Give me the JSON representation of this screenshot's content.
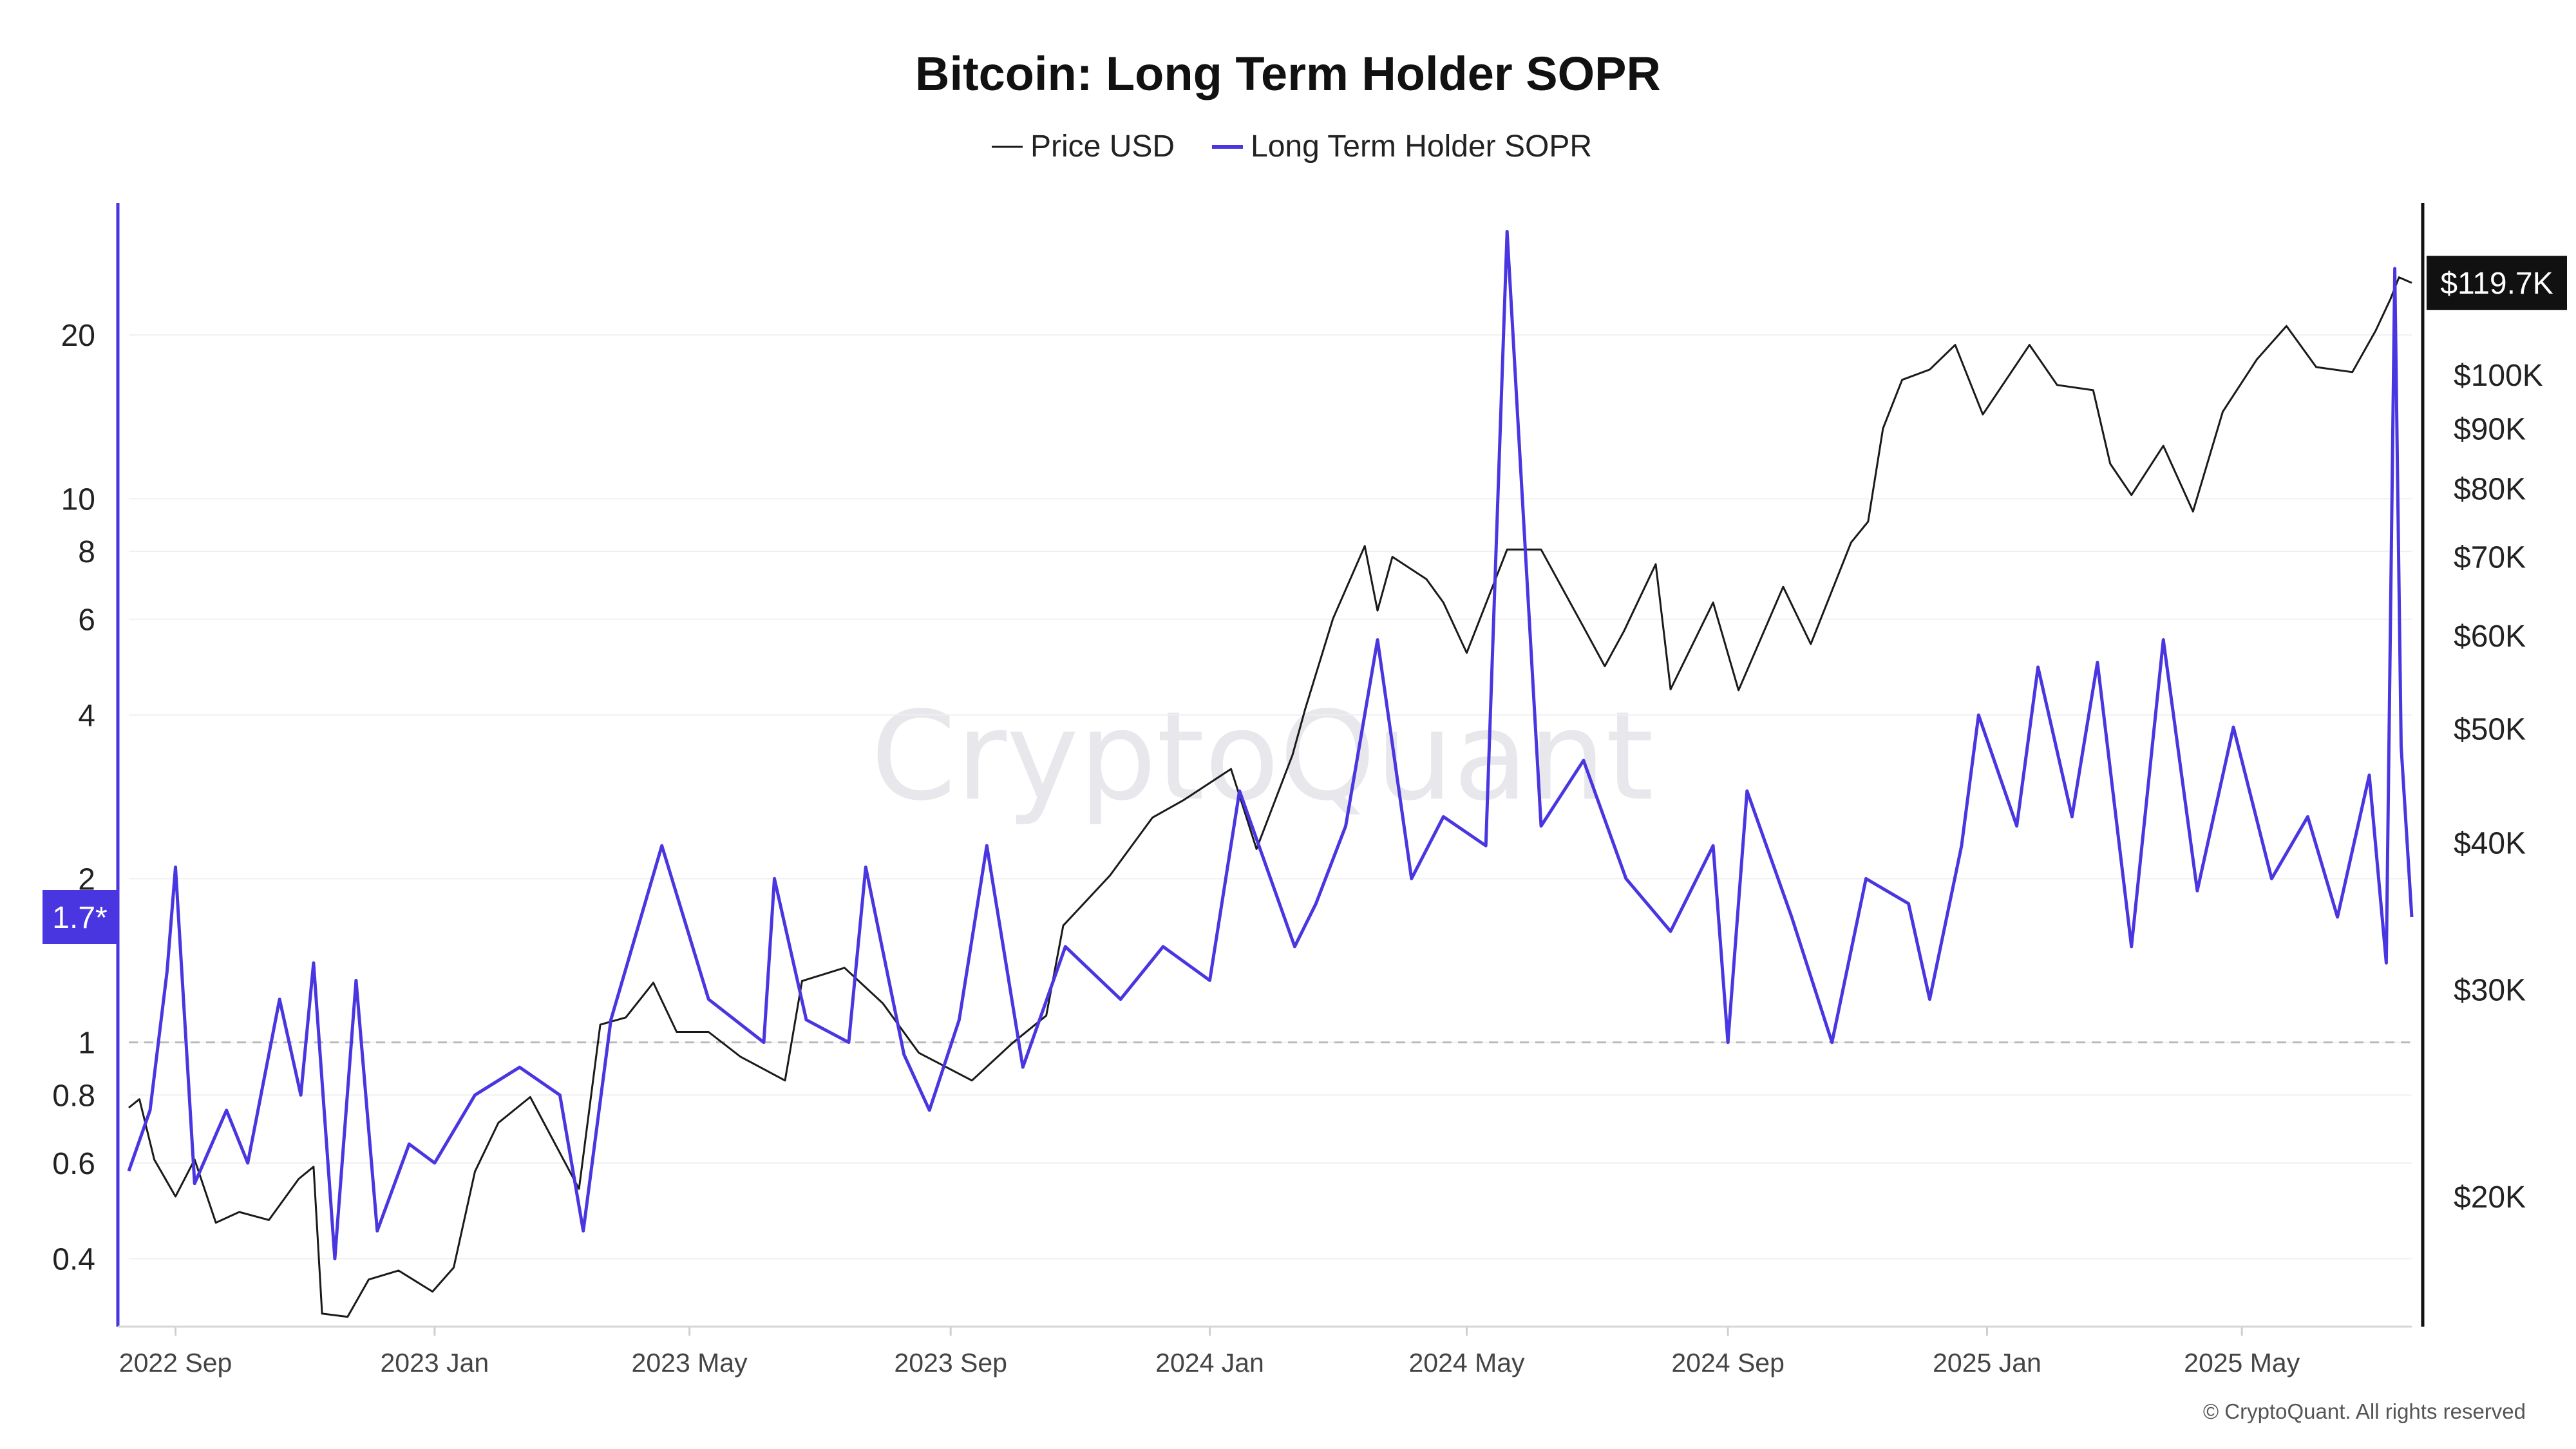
{
  "chart_data": {
    "type": "line",
    "title": "Bitcoin: Long Term Holder SOPR",
    "legend": {
      "placement": "top-center",
      "items": [
        "Price USD",
        "Long Term Holder SOPR"
      ]
    },
    "colors": {
      "price": "#1a1a1a",
      "sopr": "#4a36e0",
      "reference_line": "#bbbbbb",
      "last_price_badge": "#111111",
      "last_sopr_badge": "#4a36e0"
    },
    "grid": true,
    "x": {
      "range": [
        "2022-08-10",
        "2025-07-20"
      ],
      "ticks": [
        "2022 Sep",
        "2023 Jan",
        "2023 May",
        "2023 Sep",
        "2024 Jan",
        "2024 May",
        "2024 Sep",
        "2025 Jan",
        "2025 May"
      ],
      "tick_dates": [
        "2022-09-01",
        "2023-01-01",
        "2023-05-01",
        "2023-09-01",
        "2024-01-01",
        "2024-05-01",
        "2024-09-01",
        "2025-01-01",
        "2025-05-01"
      ]
    },
    "y_left": {
      "series": "Long Term Holder SOPR",
      "scale": "log",
      "range": [
        0.3,
        35
      ],
      "ticks": [
        0.4,
        0.6,
        0.8,
        1,
        2,
        4,
        6,
        8,
        10,
        20
      ],
      "tick_labels": [
        "0.4",
        "0.6",
        "0.8",
        "1",
        "2",
        "4",
        "6",
        "8",
        "10",
        "20"
      ],
      "reference_line": 1
    },
    "y_right": {
      "series": "Price USD",
      "scale": "log",
      "range": [
        15500,
        140000
      ],
      "ticks": [
        20000,
        30000,
        40000,
        50000,
        60000,
        70000,
        80000,
        90000,
        100000
      ],
      "tick_labels": [
        "$20K",
        "$30K",
        "$40K",
        "$50K",
        "$60K",
        "$70K",
        "$80K",
        "$90K",
        "$100K"
      ]
    },
    "series": [
      {
        "name": "Price USD",
        "axis": "right",
        "points": [
          [
            "2022-08-10",
            23800
          ],
          [
            "2022-08-15",
            24200
          ],
          [
            "2022-08-22",
            21500
          ],
          [
            "2022-09-01",
            20000
          ],
          [
            "2022-09-10",
            21500
          ],
          [
            "2022-09-20",
            19000
          ],
          [
            "2022-10-01",
            19400
          ],
          [
            "2022-10-15",
            19100
          ],
          [
            "2022-10-29",
            20700
          ],
          [
            "2022-11-05",
            21200
          ],
          [
            "2022-11-09",
            15900
          ],
          [
            "2022-11-21",
            15800
          ],
          [
            "2022-12-01",
            17000
          ],
          [
            "2022-12-15",
            17300
          ],
          [
            "2022-12-31",
            16600
          ],
          [
            "2023-01-10",
            17400
          ],
          [
            "2023-01-20",
            21000
          ],
          [
            "2023-01-31",
            23100
          ],
          [
            "2023-02-15",
            24300
          ],
          [
            "2023-03-10",
            20300
          ],
          [
            "2023-03-20",
            28000
          ],
          [
            "2023-04-01",
            28400
          ],
          [
            "2023-04-14",
            30400
          ],
          [
            "2023-04-25",
            27600
          ],
          [
            "2023-05-10",
            27600
          ],
          [
            "2023-05-25",
            26300
          ],
          [
            "2023-06-15",
            25100
          ],
          [
            "2023-06-23",
            30500
          ],
          [
            "2023-07-13",
            31300
          ],
          [
            "2023-07-31",
            29200
          ],
          [
            "2023-08-17",
            26500
          ],
          [
            "2023-09-11",
            25100
          ],
          [
            "2023-09-30",
            27000
          ],
          [
            "2023-10-16",
            28500
          ],
          [
            "2023-10-24",
            34000
          ],
          [
            "2023-11-15",
            37500
          ],
          [
            "2023-12-05",
            42000
          ],
          [
            "2023-12-20",
            43500
          ],
          [
            "2024-01-11",
            46200
          ],
          [
            "2024-01-23",
            39500
          ],
          [
            "2024-02-09",
            47500
          ],
          [
            "2024-02-15",
            52000
          ],
          [
            "2024-02-28",
            62000
          ],
          [
            "2024-03-14",
            71500
          ],
          [
            "2024-03-20",
            63000
          ],
          [
            "2024-03-27",
            70000
          ],
          [
            "2024-04-12",
            67000
          ],
          [
            "2024-04-20",
            64000
          ],
          [
            "2024-05-01",
            58000
          ],
          [
            "2024-05-20",
            71000
          ],
          [
            "2024-06-05",
            71000
          ],
          [
            "2024-06-25",
            61000
          ],
          [
            "2024-07-05",
            56500
          ],
          [
            "2024-07-14",
            60500
          ],
          [
            "2024-07-29",
            69000
          ],
          [
            "2024-08-05",
            54000
          ],
          [
            "2024-08-25",
            64000
          ],
          [
            "2024-09-06",
            53900
          ],
          [
            "2024-09-27",
            66000
          ],
          [
            "2024-10-10",
            59000
          ],
          [
            "2024-10-29",
            72000
          ],
          [
            "2024-11-06",
            75000
          ],
          [
            "2024-11-13",
            90000
          ],
          [
            "2024-11-22",
            99000
          ],
          [
            "2024-12-05",
            101000
          ],
          [
            "2024-12-17",
            106000
          ],
          [
            "2024-12-30",
            92500
          ],
          [
            "2025-01-21",
            106000
          ],
          [
            "2025-02-03",
            98000
          ],
          [
            "2025-02-20",
            97000
          ],
          [
            "2025-02-28",
            84000
          ],
          [
            "2025-03-10",
            79000
          ],
          [
            "2025-03-25",
            87000
          ],
          [
            "2025-04-08",
            76500
          ],
          [
            "2025-04-22",
            93000
          ],
          [
            "2025-05-08",
            103000
          ],
          [
            "2025-05-22",
            110000
          ],
          [
            "2025-06-05",
            101500
          ],
          [
            "2025-06-22",
            100500
          ],
          [
            "2025-07-03",
            109000
          ],
          [
            "2025-07-10",
            116000
          ],
          [
            "2025-07-14",
            121000
          ],
          [
            "2025-07-20",
            119700
          ]
        ],
        "last_value_label": "$119.7K"
      },
      {
        "name": "Long Term Holder SOPR",
        "axis": "left",
        "points": [
          [
            "2022-08-10",
            0.58
          ],
          [
            "2022-08-20",
            0.75
          ],
          [
            "2022-08-28",
            1.35
          ],
          [
            "2022-09-01",
            2.1
          ],
          [
            "2022-09-10",
            0.55
          ],
          [
            "2022-09-25",
            0.75
          ],
          [
            "2022-10-05",
            0.6
          ],
          [
            "2022-10-20",
            1.2
          ],
          [
            "2022-10-30",
            0.8
          ],
          [
            "2022-11-05",
            1.4
          ],
          [
            "2022-11-15",
            0.4
          ],
          [
            "2022-11-25",
            1.3
          ],
          [
            "2022-12-05",
            0.45
          ],
          [
            "2022-12-20",
            0.65
          ],
          [
            "2023-01-01",
            0.6
          ],
          [
            "2023-01-20",
            0.8
          ],
          [
            "2023-02-10",
            0.9
          ],
          [
            "2023-03-01",
            0.8
          ],
          [
            "2023-03-12",
            0.45
          ],
          [
            "2023-03-25",
            1.1
          ],
          [
            "2023-04-18",
            2.3
          ],
          [
            "2023-05-10",
            1.2
          ],
          [
            "2023-06-05",
            1.0
          ],
          [
            "2023-06-10",
            2.0
          ],
          [
            "2023-06-25",
            1.1
          ],
          [
            "2023-07-15",
            1.0
          ],
          [
            "2023-07-23",
            2.1
          ],
          [
            "2023-08-10",
            0.95
          ],
          [
            "2023-08-22",
            0.75
          ],
          [
            "2023-09-05",
            1.1
          ],
          [
            "2023-09-18",
            2.3
          ],
          [
            "2023-10-05",
            0.9
          ],
          [
            "2023-10-25",
            1.5
          ],
          [
            "2023-11-20",
            1.2
          ],
          [
            "2023-12-10",
            1.5
          ],
          [
            "2024-01-01",
            1.3
          ],
          [
            "2024-01-15",
            2.9
          ],
          [
            "2024-02-10",
            1.5
          ],
          [
            "2024-02-20",
            1.8
          ],
          [
            "2024-03-05",
            2.5
          ],
          [
            "2024-03-20",
            5.5
          ],
          [
            "2024-04-05",
            2.0
          ],
          [
            "2024-04-20",
            2.6
          ],
          [
            "2024-05-10",
            2.3
          ],
          [
            "2024-05-20",
            31.0
          ],
          [
            "2024-06-05",
            2.5
          ],
          [
            "2024-06-25",
            3.3
          ],
          [
            "2024-07-15",
            2.0
          ],
          [
            "2024-08-05",
            1.6
          ],
          [
            "2024-08-25",
            2.3
          ],
          [
            "2024-09-01",
            1.0
          ],
          [
            "2024-09-10",
            2.9
          ],
          [
            "2024-10-01",
            1.7
          ],
          [
            "2024-10-20",
            1.0
          ],
          [
            "2024-11-05",
            2.0
          ],
          [
            "2024-11-25",
            1.8
          ],
          [
            "2024-12-05",
            1.2
          ],
          [
            "2024-12-20",
            2.3
          ],
          [
            "2024-12-28",
            4.0
          ],
          [
            "2025-01-15",
            2.5
          ],
          [
            "2025-01-25",
            4.9
          ],
          [
            "2025-02-10",
            2.6
          ],
          [
            "2025-02-22",
            5.0
          ],
          [
            "2025-03-10",
            1.5
          ],
          [
            "2025-03-25",
            5.5
          ],
          [
            "2025-04-10",
            1.9
          ],
          [
            "2025-04-27",
            3.8
          ],
          [
            "2025-05-15",
            2.0
          ],
          [
            "2025-06-01",
            2.6
          ],
          [
            "2025-06-15",
            1.7
          ],
          [
            "2025-06-30",
            3.1
          ],
          [
            "2025-07-08",
            1.4
          ],
          [
            "2025-07-12",
            26.5
          ],
          [
            "2025-07-15",
            3.5
          ],
          [
            "2025-07-20",
            1.7
          ]
        ],
        "last_value_label": "1.7*"
      }
    ]
  },
  "watermark": "CryptoQuant",
  "copyright": "© CryptoQuant. All rights reserved"
}
